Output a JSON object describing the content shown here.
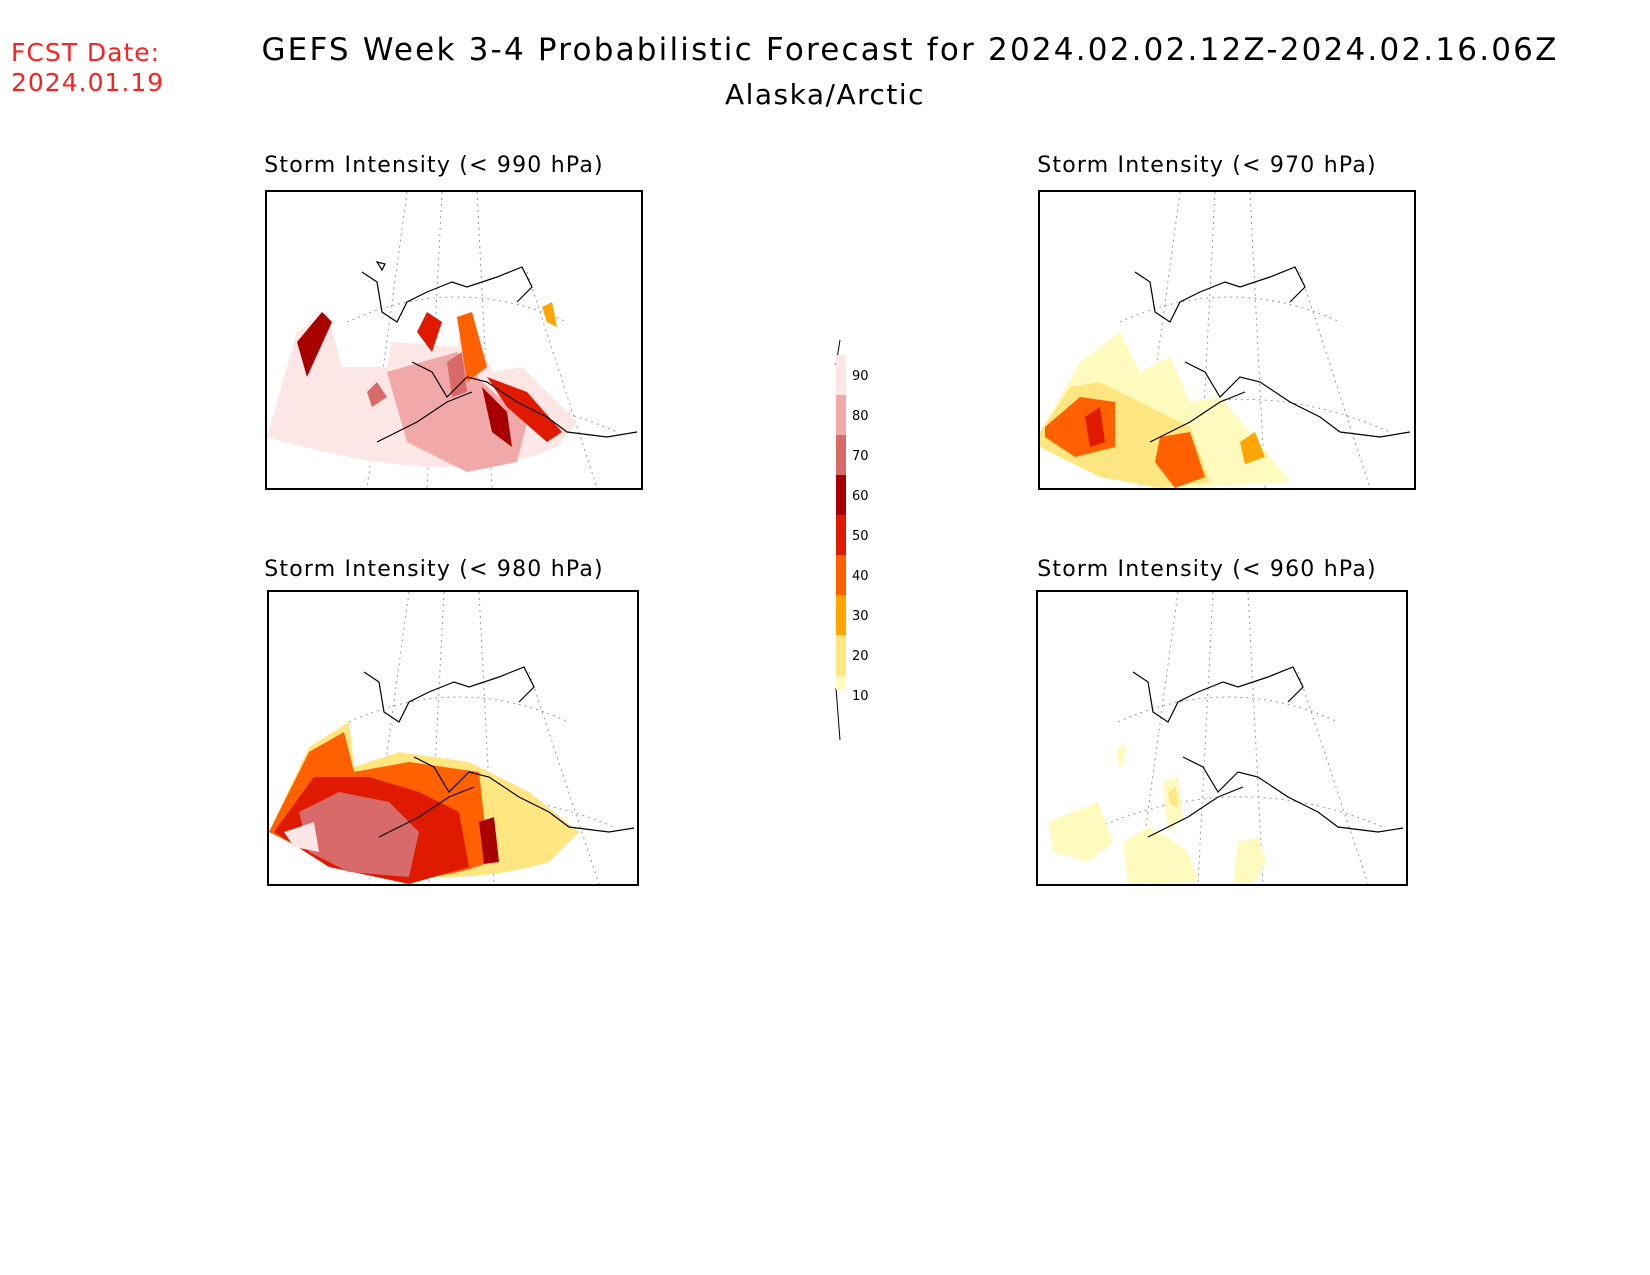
{
  "header": {
    "fcst_label": "FCST Date:",
    "fcst_date": "2024.01.19",
    "title": "GEFS Week 3-4 Probabilistic Forecast for 2024.02.02.12Z-2024.02.16.06Z",
    "subtitle": "Alaska/Arctic"
  },
  "panels": [
    {
      "title": "Storm Intensity (< 990 hPa)",
      "threshold": "990 hPa"
    },
    {
      "title": "Storm Intensity (< 970 hPa)",
      "threshold": "970 hPa"
    },
    {
      "title": "Storm Intensity (< 980 hPa)",
      "threshold": "980 hPa"
    },
    {
      "title": "Storm Intensity (< 960 hPa)",
      "threshold": "960 hPa"
    }
  ],
  "colorbar": {
    "ticks": [
      "10",
      "20",
      "30",
      "40",
      "50",
      "60",
      "70",
      "80",
      "90"
    ],
    "colors": [
      "#fffbbf",
      "#ffe680",
      "#ffa500",
      "#ff6000",
      "#e01a00",
      "#a80000",
      "#d86a6a",
      "#f0a8a8",
      "#fde6e6"
    ]
  }
}
